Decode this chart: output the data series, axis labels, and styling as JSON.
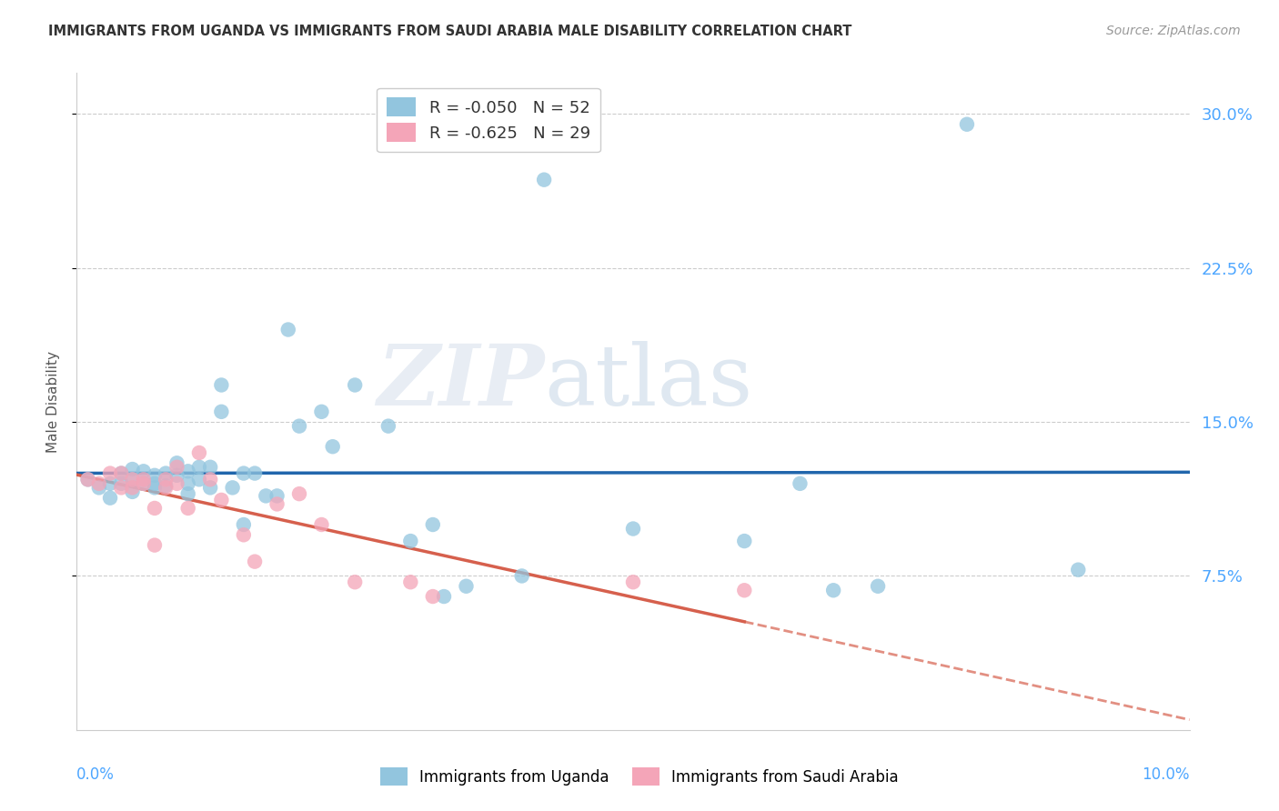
{
  "title": "IMMIGRANTS FROM UGANDA VS IMMIGRANTS FROM SAUDI ARABIA MALE DISABILITY CORRELATION CHART",
  "source": "Source: ZipAtlas.com",
  "ylabel": "Male Disability",
  "xlim": [
    0.0,
    0.1
  ],
  "ylim": [
    0.0,
    0.32
  ],
  "yticks": [
    0.075,
    0.15,
    0.225,
    0.3
  ],
  "ytick_labels": [
    "7.5%",
    "15.0%",
    "22.5%",
    "30.0%"
  ],
  "uganda_color": "#92c5de",
  "saudi_color": "#f4a5b8",
  "uganda_line_color": "#2166ac",
  "saudi_line_color": "#d6604d",
  "uganda_R": -0.05,
  "uganda_N": 52,
  "saudi_R": -0.625,
  "saudi_N": 29,
  "legend_label_uganda": "Immigrants from Uganda",
  "legend_label_saudi": "Immigrants from Saudi Arabia",
  "uganda_x": [
    0.001,
    0.002,
    0.003,
    0.003,
    0.004,
    0.004,
    0.005,
    0.005,
    0.005,
    0.006,
    0.006,
    0.007,
    0.007,
    0.007,
    0.008,
    0.008,
    0.009,
    0.009,
    0.01,
    0.01,
    0.01,
    0.011,
    0.011,
    0.012,
    0.012,
    0.013,
    0.013,
    0.014,
    0.015,
    0.015,
    0.016,
    0.017,
    0.018,
    0.019,
    0.02,
    0.022,
    0.023,
    0.025,
    0.028,
    0.03,
    0.032,
    0.033,
    0.035,
    0.04,
    0.042,
    0.05,
    0.06,
    0.065,
    0.068,
    0.072,
    0.08,
    0.09
  ],
  "uganda_y": [
    0.122,
    0.118,
    0.12,
    0.113,
    0.125,
    0.12,
    0.127,
    0.116,
    0.122,
    0.126,
    0.12,
    0.124,
    0.118,
    0.12,
    0.125,
    0.119,
    0.13,
    0.124,
    0.126,
    0.12,
    0.115,
    0.128,
    0.122,
    0.128,
    0.118,
    0.168,
    0.155,
    0.118,
    0.125,
    0.1,
    0.125,
    0.114,
    0.114,
    0.195,
    0.148,
    0.155,
    0.138,
    0.168,
    0.148,
    0.092,
    0.1,
    0.065,
    0.07,
    0.075,
    0.268,
    0.098,
    0.092,
    0.12,
    0.068,
    0.07,
    0.295,
    0.078
  ],
  "saudi_x": [
    0.001,
    0.002,
    0.003,
    0.004,
    0.004,
    0.005,
    0.005,
    0.006,
    0.006,
    0.007,
    0.007,
    0.008,
    0.008,
    0.009,
    0.009,
    0.01,
    0.011,
    0.012,
    0.013,
    0.015,
    0.016,
    0.018,
    0.02,
    0.022,
    0.025,
    0.03,
    0.032,
    0.05,
    0.06
  ],
  "saudi_y": [
    0.122,
    0.12,
    0.125,
    0.125,
    0.118,
    0.122,
    0.118,
    0.122,
    0.12,
    0.108,
    0.09,
    0.122,
    0.118,
    0.12,
    0.128,
    0.108,
    0.135,
    0.122,
    0.112,
    0.095,
    0.082,
    0.11,
    0.115,
    0.1,
    0.072,
    0.072,
    0.065,
    0.072,
    0.068
  ],
  "watermark_zip": "ZIP",
  "watermark_atlas": "atlas",
  "background_color": "#ffffff",
  "grid_color": "#cccccc",
  "tick_color": "#4da6ff"
}
